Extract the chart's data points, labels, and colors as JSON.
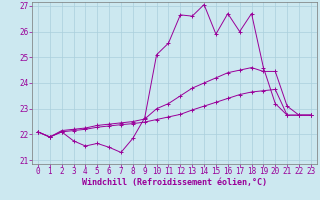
{
  "xlabel": "Windchill (Refroidissement éolien,°C)",
  "background_color": "#cce8f0",
  "grid_color": "#aacfdc",
  "line_color": "#990099",
  "spine_color": "#777777",
  "xlim": [
    -0.5,
    23.5
  ],
  "ylim": [
    20.85,
    27.15
  ],
  "yticks": [
    21,
    22,
    23,
    24,
    25,
    26,
    27
  ],
  "xticks": [
    0,
    1,
    2,
    3,
    4,
    5,
    6,
    7,
    8,
    9,
    10,
    11,
    12,
    13,
    14,
    15,
    16,
    17,
    18,
    19,
    20,
    21,
    22,
    23
  ],
  "series1_x": [
    0,
    1,
    2,
    3,
    4,
    5,
    6,
    7,
    8,
    9,
    10,
    11,
    12,
    13,
    14,
    15,
    16,
    17,
    18,
    19,
    20,
    21,
    22,
    23
  ],
  "series1_y": [
    22.1,
    21.9,
    22.1,
    21.75,
    21.55,
    21.65,
    21.5,
    21.3,
    21.85,
    22.65,
    25.1,
    25.55,
    26.65,
    26.6,
    27.05,
    25.9,
    26.7,
    26.0,
    26.7,
    24.6,
    23.2,
    22.75,
    22.75,
    22.75
  ],
  "series2_x": [
    0,
    1,
    2,
    3,
    4,
    5,
    6,
    7,
    8,
    9,
    10,
    11,
    12,
    13,
    14,
    15,
    16,
    17,
    18,
    19,
    20,
    21,
    22,
    23
  ],
  "series2_y": [
    22.1,
    21.9,
    22.15,
    22.2,
    22.25,
    22.35,
    22.4,
    22.45,
    22.5,
    22.6,
    23.0,
    23.2,
    23.5,
    23.8,
    24.0,
    24.2,
    24.4,
    24.5,
    24.6,
    24.45,
    24.45,
    23.1,
    22.75,
    22.75
  ],
  "series3_x": [
    0,
    1,
    2,
    3,
    4,
    5,
    6,
    7,
    8,
    9,
    10,
    11,
    12,
    13,
    14,
    15,
    16,
    17,
    18,
    19,
    20,
    21,
    22,
    23
  ],
  "series3_y": [
    22.1,
    21.9,
    22.1,
    22.15,
    22.2,
    22.28,
    22.33,
    22.38,
    22.42,
    22.48,
    22.58,
    22.68,
    22.78,
    22.95,
    23.1,
    23.25,
    23.4,
    23.55,
    23.65,
    23.7,
    23.75,
    22.75,
    22.75,
    22.75
  ],
  "tick_fontsize": 5.5,
  "xlabel_fontsize": 6.0
}
